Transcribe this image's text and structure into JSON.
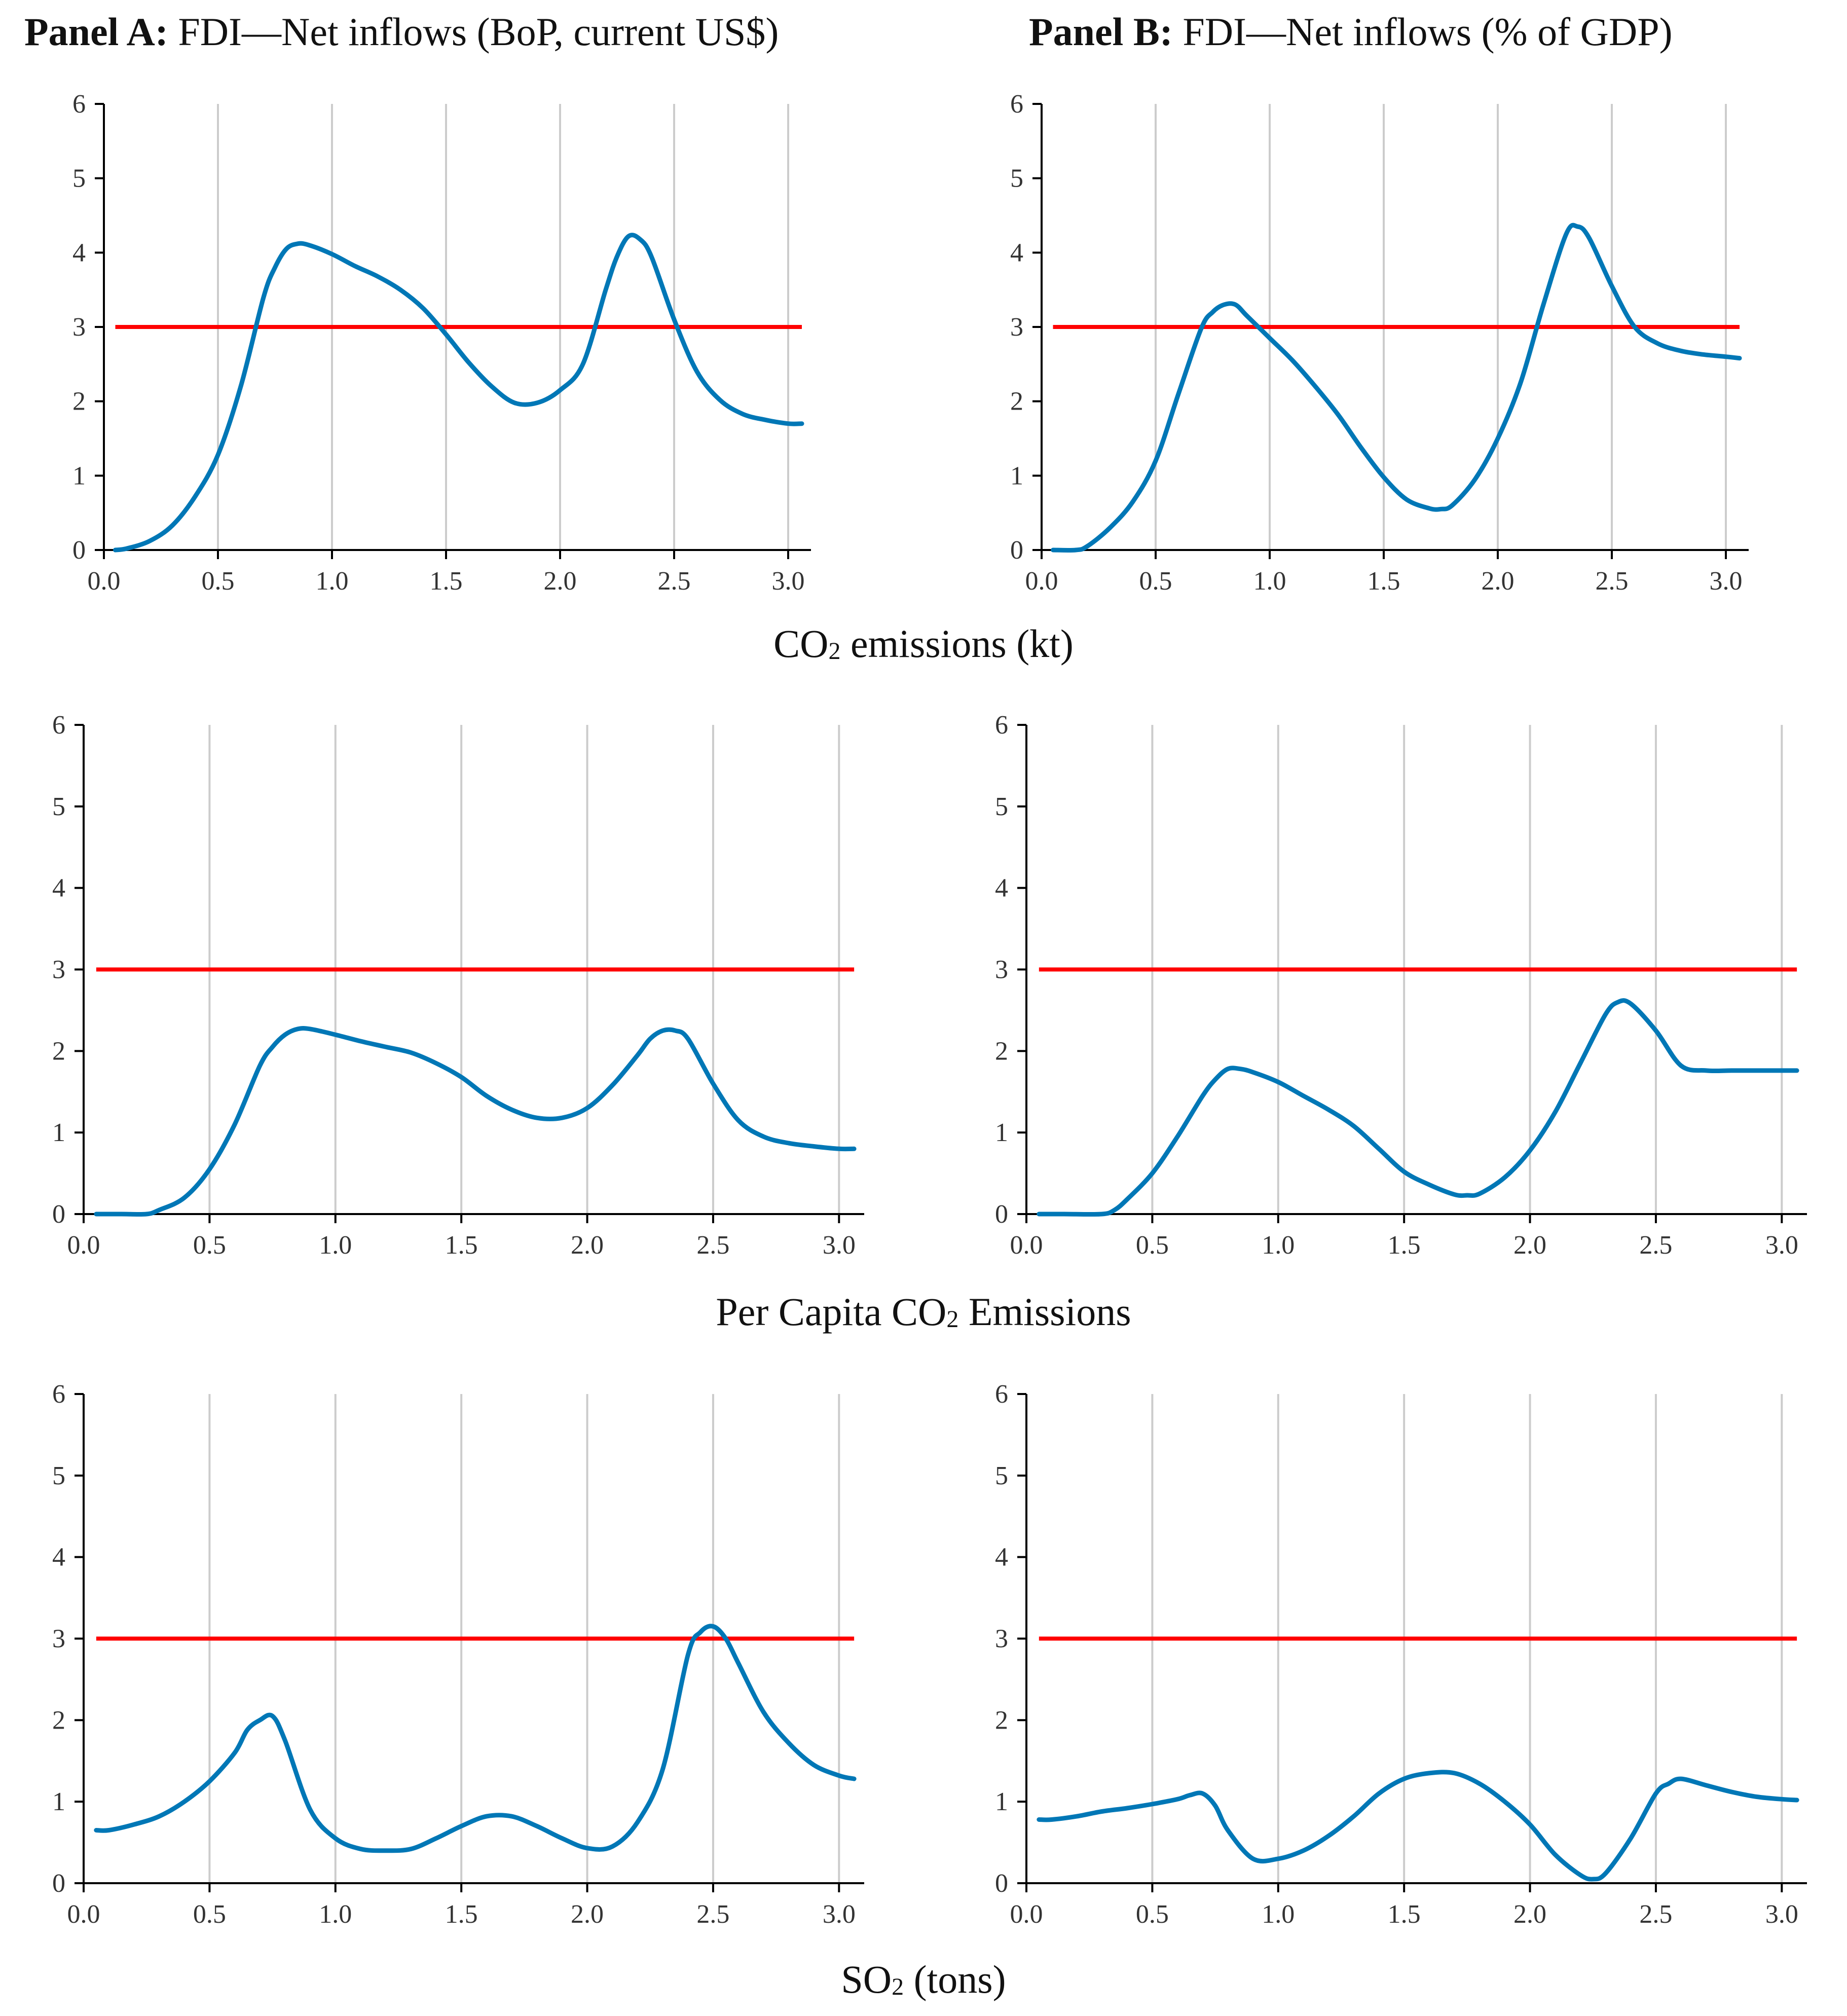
{
  "panels": {
    "a": {
      "bold": "Panel A:",
      "rest": " FDI—Net inflows (BoP, current US$)"
    },
    "b": {
      "bold": "Panel B:",
      "rest": " FDI—Net inflows (% of GDP)"
    }
  },
  "rows": [
    {
      "pre": "CO",
      "sub": "2",
      "post": " emissions (kt)"
    },
    {
      "pre": "Per Capita CO",
      "sub": "2",
      "post": " Emissions"
    },
    {
      "pre": "SO",
      "sub": "2",
      "post": " (tons)"
    }
  ],
  "colors": {
    "curve": "#0077b6",
    "threshold": "#ff0000",
    "grid": "#cccccc",
    "axis": "#000000"
  },
  "chart_data": [
    {
      "id": "co2-kt-panel-a",
      "type": "line",
      "xlim": [
        0,
        3.1
      ],
      "ylim": [
        0,
        6
      ],
      "xticks": [
        "0.0",
        "0.5",
        "1.0",
        "1.5",
        "2.0",
        "2.5",
        "3.0"
      ],
      "yticks": [
        "0",
        "1",
        "2",
        "3",
        "4",
        "5",
        "6"
      ],
      "grid_x": [
        0.5,
        1.0,
        1.5,
        2.0,
        2.5,
        3.0
      ],
      "threshold": 3,
      "threshold_range": [
        0.05,
        3.06
      ],
      "x": [
        0.05,
        0.1,
        0.2,
        0.3,
        0.4,
        0.5,
        0.6,
        0.7,
        0.75,
        0.8,
        0.85,
        0.9,
        1.0,
        1.1,
        1.2,
        1.3,
        1.4,
        1.5,
        1.6,
        1.7,
        1.8,
        1.9,
        2.0,
        2.1,
        2.2,
        2.25,
        2.3,
        2.35,
        2.4,
        2.5,
        2.6,
        2.7,
        2.8,
        2.9,
        3.0,
        3.06
      ],
      "y": [
        0.0,
        0.02,
        0.12,
        0.33,
        0.72,
        1.28,
        2.2,
        3.4,
        3.8,
        4.05,
        4.12,
        4.1,
        3.98,
        3.82,
        3.68,
        3.5,
        3.25,
        2.9,
        2.52,
        2.2,
        1.98,
        1.98,
        2.15,
        2.5,
        3.5,
        3.95,
        4.22,
        4.18,
        3.95,
        3.1,
        2.4,
        2.02,
        1.83,
        1.75,
        1.7,
        1.7
      ]
    },
    {
      "id": "co2-kt-panel-b",
      "type": "line",
      "xlim": [
        0,
        3.1
      ],
      "ylim": [
        0,
        6
      ],
      "xticks": [
        "0.0",
        "0.5",
        "1.0",
        "1.5",
        "2.0",
        "2.5",
        "3.0"
      ],
      "yticks": [
        "0",
        "1",
        "2",
        "3",
        "4",
        "5",
        "6"
      ],
      "grid_x": [
        0.5,
        1.0,
        1.5,
        2.0,
        2.5,
        3.0
      ],
      "threshold": 3,
      "threshold_range": [
        0.05,
        3.06
      ],
      "x": [
        0.05,
        0.15,
        0.2,
        0.3,
        0.4,
        0.5,
        0.6,
        0.7,
        0.75,
        0.8,
        0.85,
        0.9,
        1.0,
        1.1,
        1.2,
        1.3,
        1.4,
        1.5,
        1.6,
        1.7,
        1.75,
        1.8,
        1.9,
        2.0,
        2.1,
        2.2,
        2.3,
        2.35,
        2.4,
        2.5,
        2.6,
        2.7,
        2.8,
        2.9,
        3.0,
        3.06
      ],
      "y": [
        0.0,
        0.0,
        0.05,
        0.3,
        0.65,
        1.2,
        2.1,
        2.98,
        3.2,
        3.3,
        3.3,
        3.15,
        2.85,
        2.55,
        2.2,
        1.82,
        1.38,
        0.98,
        0.68,
        0.56,
        0.55,
        0.6,
        0.95,
        1.5,
        2.25,
        3.3,
        4.25,
        4.35,
        4.2,
        3.55,
        3.0,
        2.78,
        2.68,
        2.63,
        2.6,
        2.58
      ]
    },
    {
      "id": "per-capita-co2-panel-a",
      "type": "line",
      "xlim": [
        0,
        3.1
      ],
      "ylim": [
        0,
        6
      ],
      "xticks": [
        "0.0",
        "0.5",
        "1.0",
        "1.5",
        "2.0",
        "2.5",
        "3.0"
      ],
      "yticks": [
        "0",
        "1",
        "2",
        "3",
        "4",
        "5",
        "6"
      ],
      "grid_x": [
        0.5,
        1.0,
        1.5,
        2.0,
        2.5,
        3.0
      ],
      "threshold": 3,
      "threshold_range": [
        0.05,
        3.06
      ],
      "x": [
        0.05,
        0.15,
        0.25,
        0.3,
        0.4,
        0.5,
        0.6,
        0.7,
        0.75,
        0.8,
        0.85,
        0.9,
        1.0,
        1.1,
        1.2,
        1.3,
        1.4,
        1.5,
        1.6,
        1.7,
        1.8,
        1.9,
        2.0,
        2.1,
        2.2,
        2.25,
        2.3,
        2.35,
        2.4,
        2.5,
        2.6,
        2.7,
        2.8,
        2.9,
        3.0,
        3.06
      ],
      "y": [
        0.0,
        0.0,
        0.0,
        0.05,
        0.2,
        0.55,
        1.1,
        1.82,
        2.05,
        2.2,
        2.27,
        2.27,
        2.2,
        2.12,
        2.05,
        1.98,
        1.85,
        1.68,
        1.45,
        1.28,
        1.18,
        1.18,
        1.3,
        1.58,
        1.95,
        2.15,
        2.25,
        2.25,
        2.15,
        1.6,
        1.15,
        0.95,
        0.87,
        0.83,
        0.8,
        0.8
      ]
    },
    {
      "id": "per-capita-co2-panel-b",
      "type": "line",
      "xlim": [
        0,
        3.1
      ],
      "ylim": [
        0,
        6
      ],
      "xticks": [
        "0.0",
        "0.5",
        "1.0",
        "1.5",
        "2.0",
        "2.5",
        "3.0"
      ],
      "yticks": [
        "0",
        "1",
        "2",
        "3",
        "4",
        "5",
        "6"
      ],
      "grid_x": [
        0.5,
        1.0,
        1.5,
        2.0,
        2.5,
        3.0
      ],
      "threshold": 3,
      "threshold_range": [
        0.05,
        3.06
      ],
      "x": [
        0.05,
        0.15,
        0.3,
        0.35,
        0.4,
        0.5,
        0.6,
        0.7,
        0.75,
        0.8,
        0.85,
        0.9,
        1.0,
        1.1,
        1.2,
        1.3,
        1.4,
        1.5,
        1.6,
        1.7,
        1.75,
        1.8,
        1.9,
        2.0,
        2.1,
        2.2,
        2.3,
        2.35,
        2.4,
        2.5,
        2.6,
        2.7,
        2.8,
        2.9,
        3.0,
        3.06
      ],
      "y": [
        0.0,
        0.0,
        0.0,
        0.05,
        0.18,
        0.5,
        0.95,
        1.45,
        1.65,
        1.78,
        1.78,
        1.74,
        1.62,
        1.45,
        1.28,
        1.08,
        0.8,
        0.52,
        0.36,
        0.24,
        0.23,
        0.25,
        0.45,
        0.78,
        1.25,
        1.85,
        2.45,
        2.6,
        2.58,
        2.25,
        1.82,
        1.76,
        1.76,
        1.76,
        1.76,
        1.76
      ]
    },
    {
      "id": "so2-tons-panel-a",
      "type": "line",
      "xlim": [
        0,
        3.1
      ],
      "ylim": [
        0,
        6
      ],
      "xticks": [
        "0.0",
        "0.5",
        "1.0",
        "1.5",
        "2.0",
        "2.5",
        "3.0"
      ],
      "yticks": [
        "0",
        "1",
        "2",
        "3",
        "4",
        "5",
        "6"
      ],
      "grid_x": [
        0.5,
        1.0,
        1.5,
        2.0,
        2.5,
        3.0
      ],
      "threshold": 3,
      "threshold_range": [
        0.05,
        3.06
      ],
      "x": [
        0.05,
        0.1,
        0.2,
        0.3,
        0.4,
        0.5,
        0.6,
        0.65,
        0.7,
        0.75,
        0.8,
        0.9,
        1.0,
        1.1,
        1.2,
        1.3,
        1.4,
        1.5,
        1.6,
        1.7,
        1.8,
        1.9,
        2.0,
        2.1,
        2.2,
        2.3,
        2.4,
        2.45,
        2.5,
        2.55,
        2.6,
        2.7,
        2.8,
        2.9,
        3.0,
        3.06
      ],
      "y": [
        0.65,
        0.65,
        0.72,
        0.82,
        1.0,
        1.25,
        1.6,
        1.88,
        2.0,
        2.05,
        1.75,
        0.9,
        0.55,
        0.42,
        0.4,
        0.42,
        0.55,
        0.7,
        0.82,
        0.82,
        0.7,
        0.55,
        0.43,
        0.45,
        0.75,
        1.4,
        2.8,
        3.08,
        3.15,
        3.0,
        2.7,
        2.1,
        1.72,
        1.45,
        1.32,
        1.28
      ]
    },
    {
      "id": "so2-tons-panel-b",
      "type": "line",
      "xlim": [
        0,
        3.1
      ],
      "ylim": [
        0,
        6
      ],
      "xticks": [
        "0.0",
        "0.5",
        "1.0",
        "1.5",
        "2.0",
        "2.5",
        "3.0"
      ],
      "yticks": [
        "0",
        "1",
        "2",
        "3",
        "4",
        "5",
        "6"
      ],
      "grid_x": [
        0.5,
        1.0,
        1.5,
        2.0,
        2.5,
        3.0
      ],
      "threshold": 3,
      "threshold_range": [
        0.05,
        3.06
      ],
      "x": [
        0.05,
        0.1,
        0.2,
        0.3,
        0.4,
        0.5,
        0.6,
        0.65,
        0.7,
        0.75,
        0.8,
        0.9,
        1.0,
        1.1,
        1.2,
        1.3,
        1.4,
        1.5,
        1.6,
        1.7,
        1.8,
        1.9,
        2.0,
        2.1,
        2.2,
        2.25,
        2.3,
        2.4,
        2.5,
        2.55,
        2.6,
        2.7,
        2.8,
        2.9,
        3.0,
        3.06
      ],
      "y": [
        0.78,
        0.78,
        0.82,
        0.88,
        0.92,
        0.97,
        1.03,
        1.08,
        1.1,
        0.95,
        0.65,
        0.3,
        0.3,
        0.4,
        0.58,
        0.82,
        1.1,
        1.28,
        1.35,
        1.35,
        1.22,
        1.0,
        0.72,
        0.35,
        0.1,
        0.05,
        0.12,
        0.55,
        1.1,
        1.22,
        1.28,
        1.2,
        1.12,
        1.06,
        1.03,
        1.02
      ]
    }
  ]
}
